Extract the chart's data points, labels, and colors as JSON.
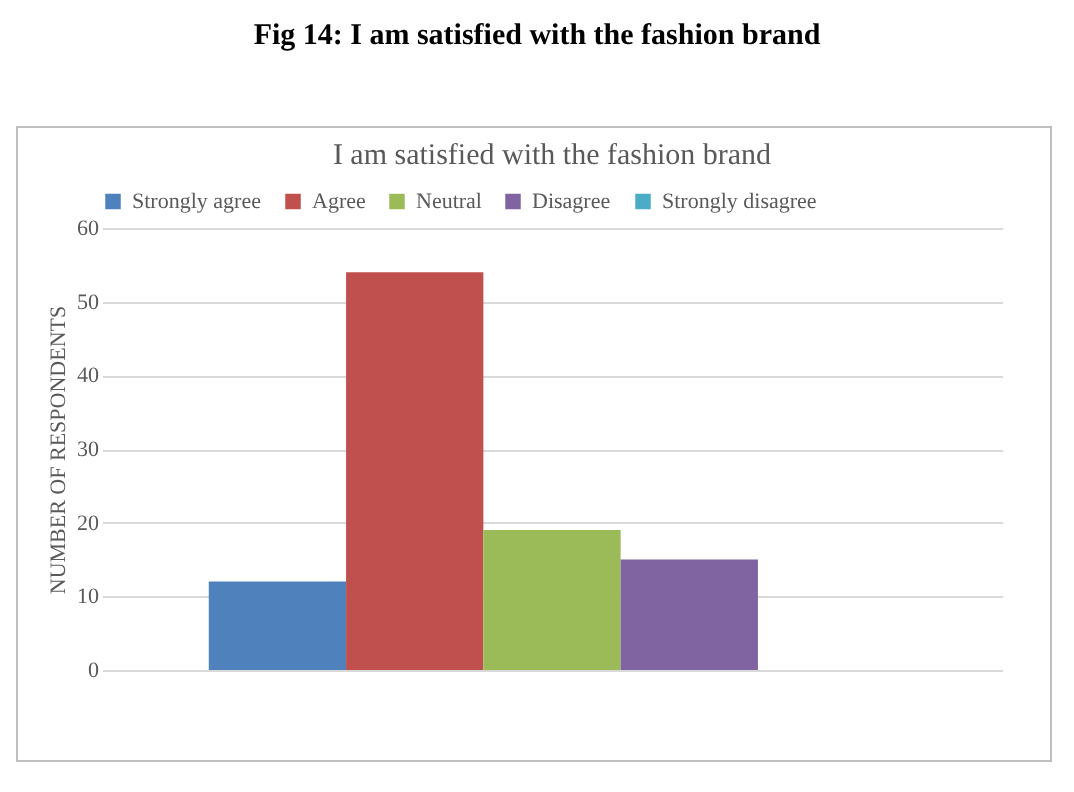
{
  "chart_data": {
    "type": "bar",
    "title": "Fig 14: I am satisfied with the fashion brand",
    "subtitle": "I am satisfied with the fashion brand",
    "ylabel": "NUMBER OF RESPONDENTS",
    "categories": [
      null
    ],
    "series": [
      {
        "name": "Strongly agree",
        "color": "#4f81bd",
        "values": [
          12
        ]
      },
      {
        "name": "Agree",
        "color": "#c0504d",
        "values": [
          54
        ]
      },
      {
        "name": "Neutral",
        "color": "#9bbb59",
        "values": [
          19
        ]
      },
      {
        "name": "Disagree",
        "color": "#8064a2",
        "values": [
          15
        ]
      },
      {
        "name": "Strongly disagree",
        "color": "#4bacc6",
        "values": [
          0
        ]
      }
    ],
    "ylim": [
      0,
      60
    ],
    "yticks": [
      0,
      10,
      20,
      30,
      40,
      50,
      60
    ],
    "grid": "y",
    "legend": "top"
  }
}
